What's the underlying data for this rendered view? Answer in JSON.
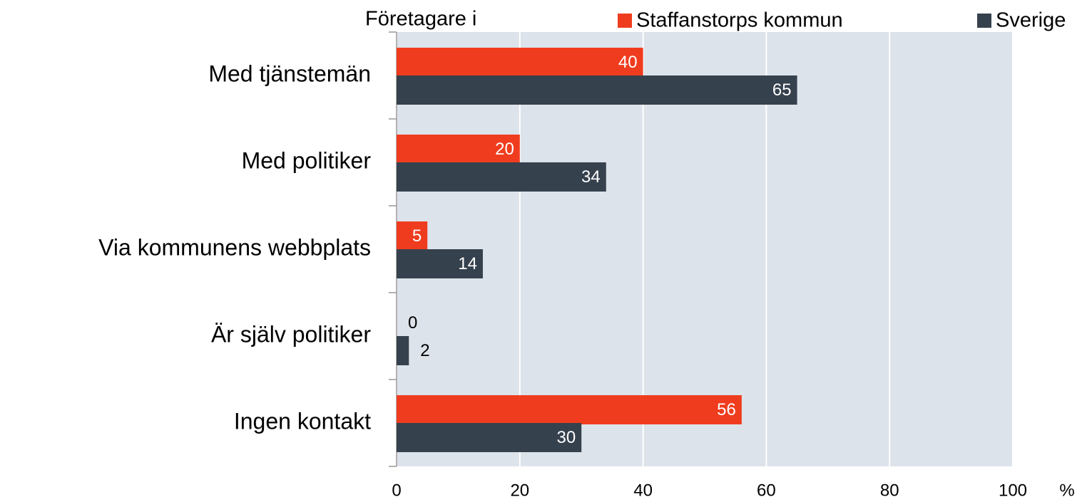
{
  "chart_data": {
    "type": "barh",
    "legend_title": "Företagare i",
    "xlabel": "%",
    "categories": [
      "Med tjänstemän",
      "Med politiker",
      "Via kommunens webbplats",
      "Är själv politiker",
      "Ingen kontakt"
    ],
    "series": [
      {
        "name": "Staffanstorps kommun",
        "color": "#f03c1e",
        "values": [
          40,
          20,
          5,
          0,
          56
        ]
      },
      {
        "name": "Sverige",
        "color": "#36414e",
        "values": [
          65,
          34,
          14,
          2,
          30
        ]
      }
    ],
    "xlim": [
      0,
      100
    ],
    "xticks": [
      0,
      20,
      40,
      60,
      80,
      100
    ],
    "grid": true,
    "plot_background": "#dde3ea",
    "legend": "top"
  }
}
